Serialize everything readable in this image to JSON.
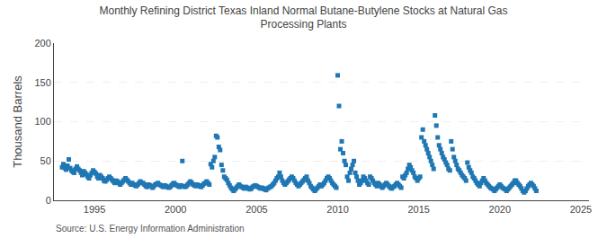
{
  "chart_data": {
    "type": "scatter",
    "title": "Monthly Refining District Texas Inland Normal Butane-Butylene Stocks at Natural Gas\nProcessing Plants",
    "ylabel": "Thousand Barrels",
    "annotations": [
      "Source: U.S. Energy Information Administration"
    ],
    "marker": "square",
    "grid": "y",
    "xlim": [
      1992.5,
      2025.5
    ],
    "ylim": [
      0,
      200
    ],
    "yticks": [
      0,
      50,
      100,
      150,
      200
    ],
    "xticks": [
      1995,
      2000,
      2005,
      2010,
      2015,
      2020,
      2025
    ],
    "x": [
      1993.0,
      1993.083,
      1993.167,
      1993.25,
      1993.333,
      1993.417,
      1993.5,
      1993.583,
      1993.667,
      1993.75,
      1993.833,
      1993.917,
      1994.0,
      1994.083,
      1994.167,
      1994.25,
      1994.333,
      1994.417,
      1994.5,
      1994.583,
      1994.667,
      1994.75,
      1994.833,
      1994.917,
      1995.0,
      1995.083,
      1995.167,
      1995.25,
      1995.333,
      1995.417,
      1995.5,
      1995.583,
      1995.667,
      1995.75,
      1995.833,
      1995.917,
      1996.0,
      1996.083,
      1996.167,
      1996.25,
      1996.333,
      1996.417,
      1996.5,
      1996.583,
      1996.667,
      1996.75,
      1996.833,
      1996.917,
      1997.0,
      1997.083,
      1997.167,
      1997.25,
      1997.333,
      1997.417,
      1997.5,
      1997.583,
      1997.667,
      1997.75,
      1997.833,
      1997.917,
      1998.0,
      1998.083,
      1998.167,
      1998.25,
      1998.333,
      1998.417,
      1998.5,
      1998.583,
      1998.667,
      1998.75,
      1998.833,
      1998.917,
      1999.0,
      1999.083,
      1999.167,
      1999.25,
      1999.333,
      1999.417,
      1999.5,
      1999.583,
      1999.667,
      1999.75,
      1999.833,
      1999.917,
      2000.0,
      2000.083,
      2000.167,
      2000.25,
      2000.333,
      2000.417,
      2000.5,
      2000.583,
      2000.667,
      2000.75,
      2000.833,
      2000.917,
      2001.0,
      2001.083,
      2001.167,
      2001.25,
      2001.333,
      2001.417,
      2001.5,
      2001.583,
      2001.667,
      2001.75,
      2001.833,
      2001.917,
      2002.0,
      2002.083,
      2002.167,
      2002.25,
      2002.333,
      2002.417,
      2002.5,
      2002.583,
      2002.667,
      2002.75,
      2002.833,
      2002.917,
      2003.0,
      2003.083,
      2003.167,
      2003.25,
      2003.333,
      2003.417,
      2003.5,
      2003.583,
      2003.667,
      2003.75,
      2003.833,
      2003.917,
      2004.0,
      2004.083,
      2004.167,
      2004.25,
      2004.333,
      2004.417,
      2004.5,
      2004.583,
      2004.667,
      2004.75,
      2004.833,
      2004.917,
      2005.0,
      2005.083,
      2005.167,
      2005.25,
      2005.333,
      2005.417,
      2005.5,
      2005.583,
      2005.667,
      2005.75,
      2005.833,
      2005.917,
      2006.0,
      2006.083,
      2006.167,
      2006.25,
      2006.333,
      2006.417,
      2006.5,
      2006.583,
      2006.667,
      2006.75,
      2006.833,
      2006.917,
      2007.0,
      2007.083,
      2007.167,
      2007.25,
      2007.333,
      2007.417,
      2007.5,
      2007.583,
      2007.667,
      2007.75,
      2007.833,
      2007.917,
      2008.0,
      2008.083,
      2008.167,
      2008.25,
      2008.333,
      2008.417,
      2008.5,
      2008.583,
      2008.667,
      2008.75,
      2008.833,
      2008.917,
      2009.0,
      2009.083,
      2009.167,
      2009.25,
      2009.333,
      2009.417,
      2009.5,
      2009.583,
      2009.667,
      2009.75,
      2009.833,
      2009.917,
      2010.0,
      2010.083,
      2010.167,
      2010.25,
      2010.333,
      2010.417,
      2010.5,
      2010.583,
      2010.667,
      2010.75,
      2010.833,
      2010.917,
      2011.0,
      2011.083,
      2011.167,
      2011.25,
      2011.333,
      2011.417,
      2011.5,
      2011.583,
      2011.667,
      2011.75,
      2011.833,
      2011.917,
      2012.0,
      2012.083,
      2012.167,
      2012.25,
      2012.333,
      2012.417,
      2012.5,
      2012.583,
      2012.667,
      2012.75,
      2012.833,
      2012.917,
      2013.0,
      2013.083,
      2013.167,
      2013.25,
      2013.333,
      2013.417,
      2013.5,
      2013.583,
      2013.667,
      2013.75,
      2013.833,
      2013.917,
      2014.0,
      2014.083,
      2014.167,
      2014.25,
      2014.333,
      2014.417,
      2014.5,
      2014.583,
      2014.667,
      2014.75,
      2014.833,
      2014.917,
      2015.0,
      2015.083,
      2015.167,
      2015.25,
      2015.333,
      2015.417,
      2015.5,
      2015.583,
      2015.667,
      2015.75,
      2015.833,
      2015.917,
      2016.0,
      2016.083,
      2016.167,
      2016.25,
      2016.333,
      2016.417,
      2016.5,
      2016.583,
      2016.667,
      2016.75,
      2016.833,
      2016.917,
      2017.0,
      2017.083,
      2017.167,
      2017.25,
      2017.333,
      2017.417,
      2017.5,
      2017.583,
      2017.667,
      2017.75,
      2017.833,
      2017.917,
      2018.0,
      2018.083,
      2018.167,
      2018.25,
      2018.333,
      2018.417,
      2018.5,
      2018.583,
      2018.667,
      2018.75,
      2018.833,
      2018.917,
      2019.0,
      2019.083,
      2019.167,
      2019.25,
      2019.333,
      2019.417,
      2019.5,
      2019.583,
      2019.667,
      2019.75,
      2019.833,
      2019.917,
      2020.0,
      2020.083,
      2020.167,
      2020.25,
      2020.333,
      2020.417,
      2020.5,
      2020.583,
      2020.667,
      2020.75,
      2020.833,
      2020.917,
      2021.0,
      2021.083,
      2021.167,
      2021.25,
      2021.333,
      2021.417,
      2021.5,
      2021.583,
      2021.667,
      2021.75,
      2021.833,
      2021.917,
      2022.0,
      2022.083,
      2022.167,
      2022.25
    ],
    "values": [
      42,
      46,
      41,
      39,
      44,
      52,
      41,
      38,
      36,
      35,
      40,
      43,
      40,
      38,
      35,
      32,
      37,
      35,
      33,
      30,
      28,
      32,
      35,
      38,
      36,
      34,
      30,
      28,
      32,
      30,
      28,
      25,
      24,
      26,
      28,
      30,
      28,
      26,
      24,
      22,
      25,
      24,
      22,
      20,
      22,
      24,
      26,
      28,
      26,
      24,
      22,
      20,
      22,
      20,
      19,
      18,
      20,
      22,
      24,
      22,
      22,
      20,
      18,
      17,
      20,
      19,
      18,
      16,
      18,
      20,
      21,
      22,
      20,
      19,
      18,
      17,
      19,
      18,
      17,
      16,
      17,
      19,
      21,
      22,
      20,
      19,
      18,
      17,
      19,
      50,
      18,
      17,
      18,
      20,
      22,
      24,
      22,
      20,
      19,
      18,
      20,
      19,
      18,
      17,
      19,
      21,
      22,
      24,
      22,
      20,
      46,
      42,
      50,
      55,
      82,
      80,
      68,
      64,
      45,
      38,
      30,
      28,
      26,
      22,
      19,
      16,
      14,
      12,
      14,
      16,
      18,
      20,
      18,
      17,
      16,
      15,
      17,
      16,
      15,
      14,
      15,
      17,
      18,
      19,
      18,
      17,
      16,
      15,
      16,
      15,
      14,
      13,
      15,
      16,
      17,
      18,
      20,
      22,
      25,
      28,
      30,
      35,
      30,
      25,
      22,
      20,
      22,
      24,
      26,
      28,
      30,
      28,
      25,
      22,
      20,
      18,
      20,
      22,
      24,
      26,
      28,
      30,
      25,
      22,
      18,
      16,
      14,
      12,
      14,
      16,
      18,
      20,
      18,
      20,
      22,
      25,
      28,
      30,
      28,
      25,
      22,
      20,
      18,
      16,
      159,
      120,
      65,
      75,
      60,
      50,
      45,
      30,
      25,
      35,
      40,
      45,
      50,
      35,
      30,
      25,
      20,
      22,
      25,
      30,
      28,
      25,
      22,
      20,
      30,
      28,
      25,
      22,
      20,
      18,
      22,
      20,
      18,
      16,
      18,
      20,
      22,
      20,
      18,
      16,
      15,
      17,
      18,
      20,
      22,
      20,
      18,
      16,
      30,
      28,
      32,
      35,
      40,
      45,
      42,
      38,
      35,
      30,
      28,
      25,
      28,
      30,
      80,
      90,
      75,
      70,
      65,
      60,
      55,
      50,
      45,
      40,
      108,
      95,
      80,
      70,
      65,
      60,
      55,
      52,
      48,
      45,
      40,
      38,
      75,
      65,
      55,
      50,
      45,
      40,
      38,
      35,
      32,
      30,
      28,
      25,
      48,
      42,
      38,
      35,
      30,
      28,
      25,
      22,
      20,
      18,
      22,
      25,
      28,
      25,
      22,
      20,
      18,
      16,
      15,
      14,
      12,
      14,
      16,
      18,
      20,
      18,
      16,
      15,
      14,
      12,
      14,
      16,
      18,
      20,
      22,
      25,
      25,
      22,
      20,
      18,
      15,
      12,
      10,
      12,
      15,
      18,
      20,
      22,
      20,
      18,
      15,
      12
    ]
  }
}
